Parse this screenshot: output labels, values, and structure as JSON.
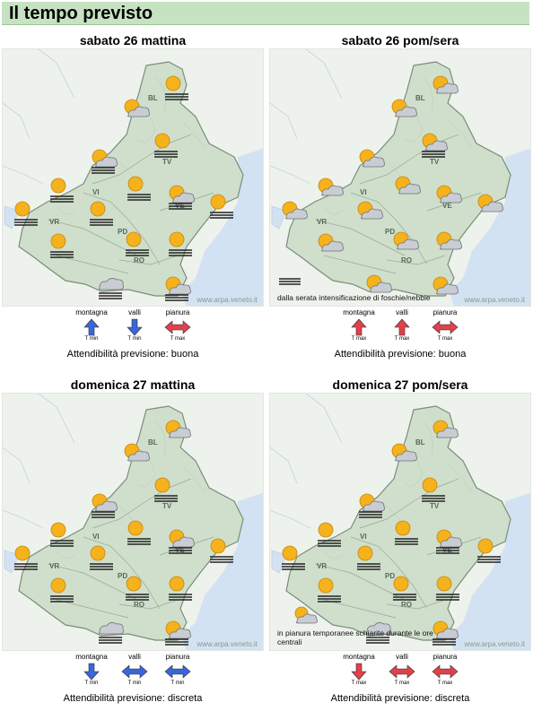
{
  "page_title": "Il tempo previsto",
  "legend_labels": {
    "mountain": "montagna",
    "valleys": "valli",
    "plain": "pianura",
    "tmin": "T min",
    "tmax": "T max"
  },
  "credit": "www.arpa.veneto.it",
  "reliability_prefix": "Attendibilità previsione:",
  "province_labels": [
    "BL",
    "TV",
    "VI",
    "VR",
    "VE",
    "PD",
    "RO"
  ],
  "colors": {
    "header_bg": "#c7e2c2",
    "land": "#cfe0cc",
    "sea": "#cfe0f2",
    "arrow_up_warm": "#e0414a",
    "arrow_cold": "#3b66d9"
  },
  "panels": [
    {
      "title": "sabato 26 mattina",
      "reliability": "Attendibilità previsione: buona",
      "note": "",
      "trends": {
        "mountain": "up-blue",
        "valleys": "down-blue",
        "plain": "steady-red"
      },
      "trend_tags": {
        "mountain": "T min",
        "valleys": "T min",
        "plain": "T max"
      },
      "icons": [
        "sun-fog",
        "sun-cloud",
        "sun-fog",
        "sun-cloud-fog",
        "sun-fog",
        "sun-fog",
        "sun-cloud-fog",
        "sun-fog",
        "sun-fog",
        "sun-fog",
        "sun-fog",
        "sun-fog",
        "sun-fog",
        "cloud-fog",
        "sun-cloud-fog"
      ]
    },
    {
      "title": "sabato 26 pom/sera",
      "reliability": "Attendibilità previsione: buona",
      "note": "dalla serata intensificazione di foschie/nebbie",
      "trends": {
        "mountain": "up-red",
        "valleys": "up-red",
        "plain": "steady-red"
      },
      "trend_tags": {
        "mountain": "T max",
        "valleys": "T max",
        "plain": "T max"
      },
      "icons": [
        "sun-cloud",
        "sun-cloud",
        "sun-cloud-fog",
        "sun-cloud",
        "sun-cloud",
        "sun-cloud",
        "sun-cloud",
        "sun-cloud",
        "sun-cloud",
        "sun-cloud",
        "sun-cloud",
        "sun-cloud",
        "sun-cloud",
        "sun-cloud",
        "sun-cloud"
      ]
    },
    {
      "title": "domenica 27 mattina",
      "reliability": "Attendibilità previsione: discreta",
      "note": "",
      "trends": {
        "mountain": "down-blue",
        "valleys": "steady-blue",
        "plain": "steady-blue"
      },
      "trend_tags": {
        "mountain": "T min",
        "valleys": "T min",
        "plain": "T min"
      },
      "icons": [
        "sun-cloud",
        "sun-cloud",
        "sun-fog",
        "sun-cloud-fog",
        "sun-fog",
        "sun-fog",
        "sun-cloud-fog",
        "sun-fog",
        "sun-fog",
        "sun-fog",
        "sun-fog",
        "sun-fog",
        "sun-fog",
        "cloud-fog",
        "sun-cloud-fog"
      ]
    },
    {
      "title": "domenica 27 pom/sera",
      "reliability": "Attendibilità previsione: discreta",
      "note": "in pianura temporanee schiarite durante le ore centrali",
      "trends": {
        "mountain": "down-red",
        "valleys": "steady-red",
        "plain": "steady-red"
      },
      "trend_tags": {
        "mountain": "T max",
        "valleys": "T max",
        "plain": "T max"
      },
      "icons": [
        "sun-cloud",
        "sun-cloud",
        "sun-fog",
        "sun-cloud-fog",
        "sun-fog",
        "sun-fog",
        "sun-cloud-fog",
        "sun-fog",
        "sun-fog",
        "sun-fog",
        "sun-fog",
        "sun-fog",
        "sun-fog",
        "cloud-fog",
        "sun-cloud-fog"
      ]
    }
  ]
}
